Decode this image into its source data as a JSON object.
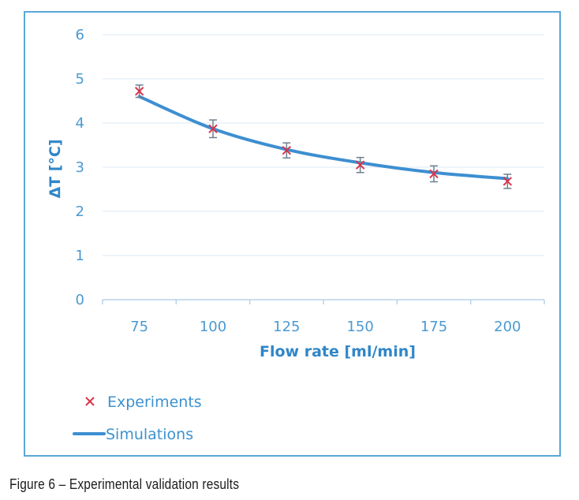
{
  "caption": "Figure 6 – Experimental validation results",
  "chart_data": {
    "type": "line",
    "xlabel": "Flow rate [ml/min]",
    "ylabel": "ΔT [°C]",
    "x": [
      75,
      100,
      125,
      150,
      175,
      200
    ],
    "xticks": [
      "75",
      "100",
      "125",
      "150",
      "175",
      "200"
    ],
    "yticks": [
      "0",
      "1",
      "2",
      "3",
      "4",
      "5",
      "6"
    ],
    "xlim": [
      62.5,
      212.5
    ],
    "ylim": [
      0,
      6
    ],
    "grid": "horizontal",
    "legend_position": "bottom-left",
    "series": [
      {
        "name": "Experiments",
        "kind": "scatter",
        "marker": "x",
        "color": "#d9334b",
        "values": [
          4.72,
          3.87,
          3.38,
          3.05,
          2.85,
          2.68
        ],
        "error": [
          0.14,
          0.2,
          0.17,
          0.17,
          0.18,
          0.16
        ]
      },
      {
        "name": "Simulations",
        "kind": "line",
        "color": "#3d8fd1",
        "values": [
          4.6,
          3.87,
          3.4,
          3.1,
          2.88,
          2.74
        ]
      }
    ]
  }
}
